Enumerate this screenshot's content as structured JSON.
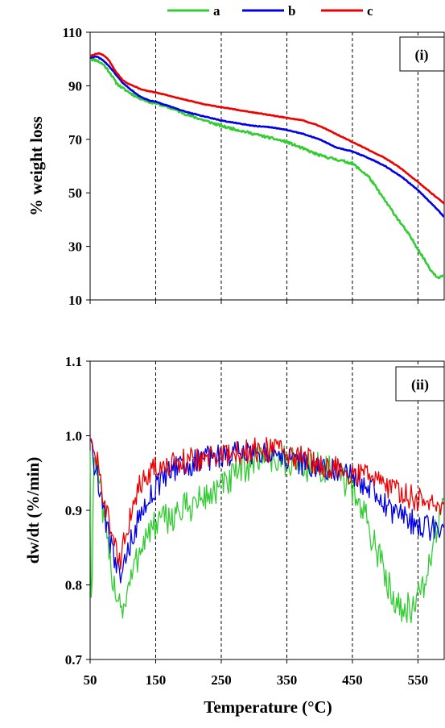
{
  "colors": {
    "a": "#33cc33",
    "b": "#0000e6",
    "c": "#ee0000"
  },
  "legend": [
    {
      "key": "a",
      "label": "a"
    },
    {
      "key": "b",
      "label": "b"
    },
    {
      "key": "c",
      "label": "c"
    }
  ],
  "xlabel": "Temperature (°C)",
  "chart_data": [
    {
      "type": "line",
      "panel_label": "(i)",
      "ylabel": "% weight loss",
      "xlim": [
        50,
        590
      ],
      "ylim": [
        10,
        110
      ],
      "xticks": [
        50,
        150,
        250,
        350,
        450,
        550
      ],
      "xtick_labels": [
        "50",
        "150",
        "250",
        "350",
        "450",
        "550"
      ],
      "yticks": [
        10,
        30,
        50,
        70,
        90,
        110
      ],
      "ytick_labels": [
        "10",
        "30",
        "50",
        "70",
        "90",
        "110"
      ],
      "ref_lines_x": [
        150,
        250,
        350,
        450,
        550
      ],
      "series": [
        {
          "name": "a",
          "color_key": "a",
          "x": [
            50,
            60,
            70,
            80,
            90,
            100,
            110,
            120,
            130,
            140,
            150,
            175,
            200,
            225,
            250,
            275,
            300,
            325,
            350,
            375,
            400,
            425,
            450,
            475,
            500,
            520,
            540,
            550,
            560,
            570,
            580,
            590
          ],
          "y": [
            100,
            99.5,
            98,
            95,
            91,
            89,
            87.5,
            86,
            85,
            84,
            83.5,
            81.5,
            79,
            77,
            75,
            73.5,
            72,
            70.5,
            69,
            66.5,
            64,
            62.5,
            61,
            56,
            47,
            40,
            33,
            29,
            25,
            21,
            18.5,
            19
          ]
        },
        {
          "name": "b",
          "color_key": "b",
          "x": [
            50,
            60,
            70,
            80,
            90,
            100,
            110,
            120,
            130,
            140,
            150,
            175,
            200,
            225,
            250,
            275,
            300,
            325,
            350,
            375,
            400,
            425,
            450,
            475,
            500,
            525,
            550,
            575,
            590
          ],
          "y": [
            100.5,
            101,
            99.5,
            97,
            94,
            91,
            89,
            87,
            85.5,
            84.5,
            84,
            82,
            80,
            78.5,
            77,
            76,
            75,
            74.5,
            73.5,
            72,
            70,
            67,
            65.5,
            63,
            60,
            56,
            51,
            45,
            41
          ]
        },
        {
          "name": "c",
          "color_key": "c",
          "x": [
            50,
            55,
            60,
            65,
            70,
            75,
            80,
            90,
            100,
            110,
            120,
            130,
            140,
            150,
            175,
            200,
            225,
            250,
            275,
            300,
            325,
            350,
            375,
            400,
            425,
            450,
            475,
            500,
            525,
            550,
            575,
            590
          ],
          "y": [
            101,
            101.5,
            102,
            102,
            101.5,
            100.5,
            99,
            95,
            92,
            90.5,
            89.5,
            88.5,
            88,
            87.5,
            86,
            84.5,
            83,
            82,
            81,
            80,
            79,
            78,
            77,
            75,
            72,
            69,
            66,
            63,
            59,
            54,
            49,
            46
          ]
        }
      ]
    },
    {
      "type": "line",
      "panel_label": "(ii)",
      "ylabel": "dw/dt (%/min)",
      "xlim": [
        50,
        590
      ],
      "ylim": [
        0.7,
        1.1
      ],
      "xticks": [
        50,
        150,
        250,
        350,
        450,
        550
      ],
      "xtick_labels": [
        "50",
        "150",
        "250",
        "350",
        "450",
        "550"
      ],
      "yticks": [
        0.7,
        0.8,
        0.9,
        1.0,
        1.1
      ],
      "ytick_labels": [
        "0.7",
        "0.8",
        "0.9",
        "1.0",
        "1.1"
      ],
      "ref_lines_x": [
        150,
        250,
        350,
        450,
        550
      ],
      "series": [
        {
          "name": "a",
          "color_key": "a",
          "x": [
            50,
            52,
            54,
            56,
            58,
            60,
            65,
            70,
            75,
            80,
            85,
            90,
            95,
            100,
            105,
            110,
            120,
            130,
            140,
            150,
            170,
            190,
            210,
            230,
            250,
            270,
            290,
            310,
            330,
            350,
            370,
            390,
            410,
            430,
            450,
            470,
            490,
            500,
            510,
            520,
            530,
            540,
            550,
            560,
            570,
            580,
            590
          ],
          "y": [
            0.99,
            0.72,
            0.9,
            0.96,
            0.97,
            0.96,
            0.93,
            0.89,
            0.86,
            0.83,
            0.81,
            0.79,
            0.78,
            0.77,
            0.78,
            0.8,
            0.83,
            0.86,
            0.87,
            0.88,
            0.89,
            0.9,
            0.91,
            0.92,
            0.93,
            0.945,
            0.96,
            0.975,
            0.97,
            0.965,
            0.96,
            0.96,
            0.955,
            0.945,
            0.93,
            0.89,
            0.84,
            0.81,
            0.79,
            0.775,
            0.77,
            0.77,
            0.78,
            0.8,
            0.84,
            0.88,
            0.93
          ]
        },
        {
          "name": "b",
          "color_key": "b",
          "x": [
            50,
            55,
            60,
            65,
            70,
            75,
            80,
            85,
            90,
            95,
            100,
            110,
            120,
            130,
            140,
            150,
            170,
            190,
            210,
            230,
            250,
            270,
            290,
            310,
            330,
            350,
            370,
            390,
            410,
            430,
            450,
            470,
            490,
            510,
            530,
            550,
            570,
            590
          ],
          "y": [
            1.0,
            0.97,
            0.95,
            0.93,
            0.91,
            0.88,
            0.86,
            0.84,
            0.83,
            0.81,
            0.82,
            0.85,
            0.88,
            0.9,
            0.92,
            0.93,
            0.95,
            0.96,
            0.965,
            0.97,
            0.972,
            0.975,
            0.978,
            0.98,
            0.975,
            0.97,
            0.965,
            0.96,
            0.955,
            0.95,
            0.945,
            0.935,
            0.92,
            0.9,
            0.89,
            0.88,
            0.875,
            0.88
          ]
        },
        {
          "name": "c",
          "color_key": "c",
          "x": [
            50,
            55,
            60,
            65,
            70,
            75,
            80,
            85,
            90,
            95,
            100,
            110,
            120,
            130,
            140,
            150,
            170,
            190,
            210,
            230,
            250,
            270,
            290,
            310,
            330,
            350,
            370,
            390,
            410,
            430,
            450,
            470,
            490,
            510,
            530,
            550,
            570,
            590
          ],
          "y": [
            1.0,
            0.99,
            0.97,
            0.94,
            0.92,
            0.9,
            0.88,
            0.86,
            0.84,
            0.83,
            0.85,
            0.89,
            0.92,
            0.94,
            0.95,
            0.955,
            0.96,
            0.965,
            0.968,
            0.97,
            0.972,
            0.975,
            0.978,
            0.982,
            0.98,
            0.975,
            0.97,
            0.965,
            0.96,
            0.955,
            0.95,
            0.945,
            0.94,
            0.93,
            0.92,
            0.915,
            0.91,
            0.905
          ]
        }
      ]
    }
  ]
}
